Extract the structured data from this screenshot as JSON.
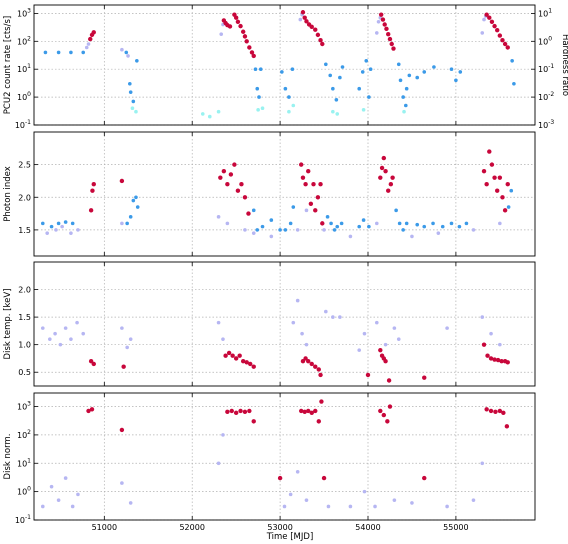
{
  "chart_data": {
    "type": "scatter",
    "x_range": [
      50200,
      55900
    ],
    "x_ticks": [
      51000,
      52000,
      53000,
      54000,
      55000
    ],
    "x_tick_labels": [
      "51000",
      "52000",
      "53000",
      "54000",
      "55000"
    ],
    "xlabel": "Time [MJD]",
    "grid": true,
    "colors": {
      "hard": "#c8073b",
      "intermediate": "#3b9ae8",
      "soft": "#b6b6f2",
      "hardness": "#000000",
      "cyan": "#99f2f0"
    },
    "panels": [
      {
        "ylabel": "PCU2 count rate [cts/s]",
        "yscale": "log",
        "ylim": [
          0.1,
          2000
        ],
        "ytick_labels": [
          "10^-1",
          "10^0",
          "10^1",
          "10^2",
          "10^3"
        ],
        "right_ylabel": "Hardness ratio",
        "right_yscale": "log",
        "right_ylim": [
          0.001,
          20
        ],
        "right_ytick_labels": [
          "10^-3",
          "10^-2",
          "10^-1",
          "10^0",
          "10^1"
        ]
      },
      {
        "ylabel": "Photon index",
        "yscale": "linear",
        "ylim": [
          1.1,
          3.0
        ],
        "ytick_labels": [
          "1.5",
          "2.0",
          "2.5"
        ]
      },
      {
        "ylabel": "Disk temp. [keV]",
        "yscale": "linear",
        "ylim": [
          0.25,
          2.5
        ],
        "ytick_labels": [
          "0.5",
          "1.0",
          "1.5",
          "2.0"
        ]
      },
      {
        "ylabel": "Disk norm.",
        "yscale": "log",
        "ylim": [
          0.1,
          3000
        ],
        "ytick_labels": [
          "10^-1",
          "10^0",
          "10^1",
          "10^2",
          "10^3"
        ]
      }
    ],
    "series": {
      "count_rate_hard": [
        [
          50840,
          120
        ],
        [
          50860,
          170
        ],
        [
          50880,
          210
        ],
        [
          52360,
          560
        ],
        [
          52380,
          450
        ],
        [
          52400,
          380
        ],
        [
          52430,
          340
        ],
        [
          52480,
          900
        ],
        [
          52500,
          700
        ],
        [
          52520,
          500
        ],
        [
          52550,
          350
        ],
        [
          52580,
          220
        ],
        [
          52600,
          150
        ],
        [
          52620,
          100
        ],
        [
          52650,
          60
        ],
        [
          52680,
          40
        ],
        [
          52700,
          30
        ],
        [
          53260,
          1100
        ],
        [
          53280,
          700
        ],
        [
          53300,
          520
        ],
        [
          53330,
          400
        ],
        [
          53360,
          330
        ],
        [
          53400,
          260
        ],
        [
          53430,
          170
        ],
        [
          53460,
          110
        ],
        [
          53480,
          80
        ],
        [
          54150,
          900
        ],
        [
          54170,
          600
        ],
        [
          54190,
          400
        ],
        [
          54210,
          280
        ],
        [
          54230,
          180
        ],
        [
          54250,
          120
        ],
        [
          54270,
          80
        ],
        [
          54290,
          55
        ],
        [
          55350,
          900
        ],
        [
          55380,
          700
        ],
        [
          55410,
          500
        ],
        [
          55440,
          350
        ],
        [
          55470,
          250
        ],
        [
          55500,
          160
        ],
        [
          55530,
          110
        ],
        [
          55560,
          80
        ],
        [
          55590,
          60
        ]
      ],
      "count_rate_intermediate": [
        [
          50330,
          40
        ],
        [
          50480,
          40
        ],
        [
          50620,
          40
        ],
        [
          50760,
          40
        ],
        [
          51250,
          40
        ],
        [
          51290,
          3
        ],
        [
          51300,
          1.5
        ],
        [
          51330,
          0.7
        ],
        [
          51370,
          20
        ],
        [
          52720,
          10
        ],
        [
          52740,
          2
        ],
        [
          52760,
          1
        ],
        [
          52780,
          10
        ],
        [
          53020,
          8
        ],
        [
          53060,
          2
        ],
        [
          53100,
          1
        ],
        [
          53140,
          10
        ],
        [
          53520,
          15
        ],
        [
          53570,
          6
        ],
        [
          53600,
          2
        ],
        [
          53640,
          0.8
        ],
        [
          53680,
          5
        ],
        [
          53710,
          12
        ],
        [
          53900,
          2
        ],
        [
          53940,
          8
        ],
        [
          53980,
          20
        ],
        [
          54010,
          1
        ],
        [
          54030,
          10
        ],
        [
          54350,
          15
        ],
        [
          54370,
          4
        ],
        [
          54400,
          1
        ],
        [
          54430,
          0.5
        ],
        [
          54440,
          2
        ],
        [
          54470,
          6
        ],
        [
          54560,
          5
        ],
        [
          54640,
          8
        ],
        [
          54750,
          12
        ],
        [
          54950,
          10
        ],
        [
          55000,
          4
        ],
        [
          55050,
          8
        ],
        [
          55640,
          20
        ],
        [
          55660,
          3
        ]
      ],
      "count_rate_soft": [
        [
          50800,
          60
        ],
        [
          50820,
          80
        ],
        [
          51200,
          50
        ],
        [
          51270,
          30
        ],
        [
          52330,
          180
        ],
        [
          52350,
          400
        ],
        [
          53230,
          600
        ],
        [
          53250,
          900
        ],
        [
          54100,
          200
        ],
        [
          54120,
          500
        ],
        [
          54140,
          700
        ],
        [
          55300,
          200
        ],
        [
          55320,
          600
        ],
        [
          55340,
          800
        ]
      ],
      "count_rate_cyan": [
        [
          51320,
          0.4
        ],
        [
          51360,
          0.3
        ],
        [
          52120,
          0.25
        ],
        [
          52200,
          0.2
        ],
        [
          52300,
          0.3
        ],
        [
          52750,
          0.35
        ],
        [
          52800,
          0.4
        ],
        [
          53100,
          0.3
        ],
        [
          53150,
          0.5
        ],
        [
          53600,
          0.3
        ],
        [
          53650,
          0.25
        ],
        [
          53950,
          0.35
        ],
        [
          54410,
          0.3
        ]
      ],
      "photon_index_hard": [
        [
          50850,
          1.8
        ],
        [
          50865,
          2.1
        ],
        [
          50880,
          2.2
        ],
        [
          51200,
          2.25
        ],
        [
          52320,
          2.3
        ],
        [
          52360,
          2.4
        ],
        [
          52400,
          2.2
        ],
        [
          52440,
          2.35
        ],
        [
          52480,
          2.5
        ],
        [
          52520,
          2.1
        ],
        [
          52560,
          2.2
        ],
        [
          52600,
          2.0
        ],
        [
          52640,
          1.75
        ],
        [
          53240,
          2.5
        ],
        [
          53260,
          2.3
        ],
        [
          53290,
          2.2
        ],
        [
          53320,
          2.4
        ],
        [
          53350,
          1.9
        ],
        [
          53380,
          2.2
        ],
        [
          53400,
          1.8
        ],
        [
          53430,
          2.0
        ],
        [
          53460,
          2.2
        ],
        [
          53480,
          1.6
        ],
        [
          54140,
          2.3
        ],
        [
          54160,
          2.45
        ],
        [
          54180,
          2.6
        ],
        [
          54200,
          2.4
        ],
        [
          54230,
          2.1
        ],
        [
          54260,
          2.2
        ],
        [
          54280,
          2.3
        ],
        [
          55320,
          2.4
        ],
        [
          55350,
          2.2
        ],
        [
          55380,
          2.7
        ],
        [
          55410,
          2.5
        ],
        [
          55440,
          2.3
        ],
        [
          55470,
          2.1
        ],
        [
          55500,
          2.3
        ],
        [
          55530,
          2.0
        ],
        [
          55560,
          1.8
        ],
        [
          55590,
          2.2
        ]
      ],
      "photon_index_intermediate": [
        [
          50300,
          1.6
        ],
        [
          50400,
          1.55
        ],
        [
          50480,
          1.6
        ],
        [
          50560,
          1.62
        ],
        [
          50640,
          1.6
        ],
        [
          51260,
          1.6
        ],
        [
          51300,
          1.7
        ],
        [
          51330,
          1.95
        ],
        [
          51360,
          2.0
        ],
        [
          51380,
          1.85
        ],
        [
          52700,
          1.8
        ],
        [
          52740,
          1.5
        ],
        [
          52800,
          1.55
        ],
        [
          52900,
          1.65
        ],
        [
          53000,
          1.5
        ],
        [
          53060,
          1.5
        ],
        [
          53120,
          1.6
        ],
        [
          53150,
          1.85
        ],
        [
          53540,
          1.7
        ],
        [
          53580,
          1.6
        ],
        [
          53620,
          1.5
        ],
        [
          53650,
          1.55
        ],
        [
          53700,
          1.6
        ],
        [
          53900,
          1.55
        ],
        [
          53950,
          1.65
        ],
        [
          54010,
          1.55
        ],
        [
          54320,
          1.8
        ],
        [
          54360,
          1.6
        ],
        [
          54400,
          1.5
        ],
        [
          54440,
          1.6
        ],
        [
          54560,
          1.58
        ],
        [
          54640,
          1.55
        ],
        [
          54740,
          1.6
        ],
        [
          54850,
          1.55
        ],
        [
          54950,
          1.6
        ],
        [
          55040,
          1.55
        ],
        [
          55120,
          1.6
        ],
        [
          55600,
          1.85
        ],
        [
          55630,
          2.1
        ]
      ],
      "photon_index_soft": [
        [
          50350,
          1.45
        ],
        [
          50450,
          1.5
        ],
        [
          50520,
          1.55
        ],
        [
          50620,
          1.45
        ],
        [
          50700,
          1.5
        ],
        [
          51200,
          1.6
        ],
        [
          52300,
          1.7
        ],
        [
          52400,
          1.6
        ],
        [
          52600,
          1.5
        ],
        [
          52700,
          1.45
        ],
        [
          52900,
          1.4
        ],
        [
          53200,
          1.5
        ],
        [
          53300,
          1.8
        ],
        [
          53500,
          1.5
        ],
        [
          53800,
          1.4
        ],
        [
          54100,
          1.6
        ],
        [
          54500,
          1.4
        ],
        [
          54800,
          1.45
        ],
        [
          55200,
          1.5
        ],
        [
          55500,
          1.6
        ]
      ],
      "disk_temp_hard": [
        [
          50850,
          0.7
        ],
        [
          50880,
          0.65
        ],
        [
          51220,
          0.6
        ],
        [
          52380,
          0.8
        ],
        [
          52420,
          0.85
        ],
        [
          52460,
          0.8
        ],
        [
          52500,
          0.75
        ],
        [
          52540,
          0.8
        ],
        [
          52580,
          0.7
        ],
        [
          52620,
          0.68
        ],
        [
          52660,
          0.65
        ],
        [
          52700,
          0.6
        ],
        [
          53260,
          0.7
        ],
        [
          53290,
          0.75
        ],
        [
          53320,
          0.7
        ],
        [
          53360,
          0.65
        ],
        [
          53400,
          0.6
        ],
        [
          53440,
          0.55
        ],
        [
          53460,
          0.45
        ],
        [
          54000,
          0.45
        ],
        [
          54140,
          0.9
        ],
        [
          54160,
          0.8
        ],
        [
          54180,
          0.75
        ],
        [
          54200,
          0.7
        ],
        [
          54240,
          0.35
        ],
        [
          54640,
          0.4
        ],
        [
          55320,
          1.0
        ],
        [
          55360,
          0.8
        ],
        [
          55400,
          0.75
        ],
        [
          55440,
          0.73
        ],
        [
          55480,
          0.72
        ],
        [
          55520,
          0.7
        ],
        [
          55560,
          0.7
        ],
        [
          55590,
          0.68
        ]
      ],
      "disk_temp_soft": [
        [
          50300,
          1.3
        ],
        [
          50380,
          1.1
        ],
        [
          50440,
          1.2
        ],
        [
          50500,
          1.0
        ],
        [
          50560,
          1.3
        ],
        [
          50620,
          1.1
        ],
        [
          50690,
          1.4
        ],
        [
          50760,
          1.2
        ],
        [
          51200,
          1.3
        ],
        [
          51260,
          0.95
        ],
        [
          51300,
          1.1
        ],
        [
          52300,
          1.4
        ],
        [
          52350,
          1.1
        ],
        [
          53150,
          1.4
        ],
        [
          53200,
          1.8
        ],
        [
          53250,
          1.2
        ],
        [
          53300,
          1.0
        ],
        [
          53520,
          1.6
        ],
        [
          53600,
          1.5
        ],
        [
          53680,
          1.5
        ],
        [
          53900,
          0.9
        ],
        [
          53960,
          1.2
        ],
        [
          54100,
          1.4
        ],
        [
          54200,
          1.0
        ],
        [
          54300,
          1.3
        ],
        [
          54350,
          1.1
        ],
        [
          54900,
          1.3
        ],
        [
          55300,
          1.5
        ],
        [
          55400,
          1.2
        ],
        [
          55500,
          1.0
        ]
      ],
      "disk_norm_hard": [
        [
          50820,
          700
        ],
        [
          50860,
          800
        ],
        [
          51200,
          150
        ],
        [
          52400,
          650
        ],
        [
          52450,
          700
        ],
        [
          52500,
          600
        ],
        [
          52550,
          700
        ],
        [
          52600,
          650
        ],
        [
          52650,
          700
        ],
        [
          52700,
          300
        ],
        [
          53000,
          3
        ],
        [
          53240,
          700
        ],
        [
          53280,
          650
        ],
        [
          53320,
          700
        ],
        [
          53360,
          600
        ],
        [
          53400,
          700
        ],
        [
          53440,
          300
        ],
        [
          53470,
          1500
        ],
        [
          53500,
          3
        ],
        [
          54140,
          700
        ],
        [
          54180,
          500
        ],
        [
          54220,
          300
        ],
        [
          54250,
          1000
        ],
        [
          54640,
          3
        ],
        [
          55350,
          800
        ],
        [
          55400,
          700
        ],
        [
          55450,
          650
        ],
        [
          55500,
          700
        ],
        [
          55540,
          600
        ],
        [
          55580,
          200
        ]
      ],
      "disk_norm_soft": [
        [
          50300,
          0.3
        ],
        [
          50400,
          1.5
        ],
        [
          50480,
          0.5
        ],
        [
          50560,
          3
        ],
        [
          50640,
          0.3
        ],
        [
          50700,
          0.8
        ],
        [
          51200,
          2
        ],
        [
          51300,
          0.4
        ],
        [
          52300,
          10
        ],
        [
          52350,
          100
        ],
        [
          53050,
          0.3
        ],
        [
          53120,
          0.8
        ],
        [
          53200,
          5
        ],
        [
          53300,
          0.5
        ],
        [
          53550,
          0.3
        ],
        [
          53800,
          0.3
        ],
        [
          53960,
          1
        ],
        [
          54080,
          0.3
        ],
        [
          54300,
          0.5
        ],
        [
          54500,
          0.4
        ],
        [
          54900,
          0.3
        ],
        [
          55200,
          0.5
        ],
        [
          55300,
          10
        ]
      ]
    }
  }
}
